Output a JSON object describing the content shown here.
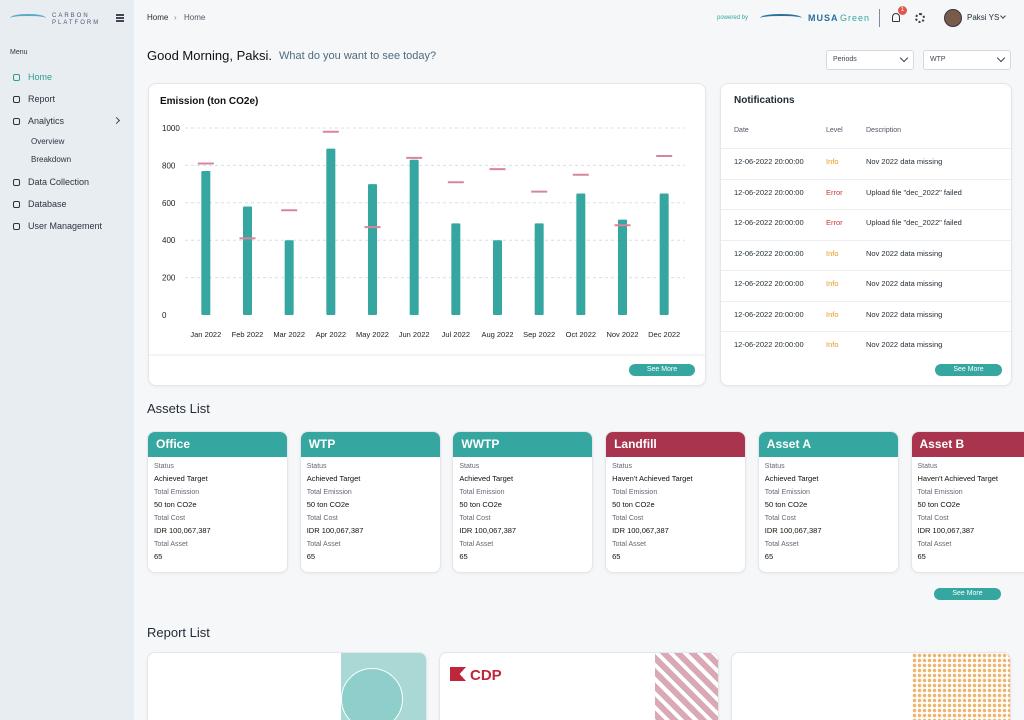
{
  "sidebar": {
    "logo": [
      "CARBON",
      "PLATFORM"
    ],
    "menu_label": "Menu",
    "nav": [
      {
        "label": "Home"
      },
      {
        "label": "Report"
      },
      {
        "label": "Analytics",
        "children": [
          "Overview",
          "Breakdown"
        ]
      },
      {
        "label": "Data Collection"
      },
      {
        "label": "Database"
      },
      {
        "label": "User Management"
      }
    ]
  },
  "topbar": {
    "breadcrumb": [
      "Home",
      "Home"
    ],
    "powered_by": "powered by",
    "brand": [
      "MUSA",
      "Green"
    ],
    "badge": "1",
    "user": "Paksi YS"
  },
  "greeting": "Good Morning, Paksi.",
  "prompt": "What do you want to see today?",
  "filters": [
    "Periods",
    "WTP"
  ],
  "chart_data": {
    "type": "bar",
    "title": "Emission (ton CO2e)",
    "categories": [
      "Jan 2022",
      "Feb 2022",
      "Mar 2022",
      "Apr 2022",
      "May 2022",
      "Jun 2022",
      "Jul 2022",
      "Aug 2022",
      "Sep 2022",
      "Oct 2022",
      "Nov 2022",
      "Dec 2022"
    ],
    "values": [
      770,
      580,
      400,
      890,
      700,
      830,
      490,
      400,
      490,
      650,
      510,
      650
    ],
    "color": "#35a7a0",
    "targets": [
      810,
      410,
      560,
      980,
      470,
      840,
      710,
      780,
      660,
      750,
      480,
      850
    ],
    "target_color": "#d98599",
    "ylim": [
      0,
      1000
    ],
    "yticks": [
      0,
      200,
      400,
      600,
      800,
      1000
    ],
    "grid": true,
    "button": "See More"
  },
  "notifications": {
    "title": "Notifications",
    "headers": [
      "Date",
      "Level",
      "Description"
    ],
    "rows": [
      {
        "date": "12-06-2022 20:00:00",
        "level": "Info",
        "color": "#e39b1f",
        "description": "Nov 2022 data missing"
      },
      {
        "date": "12-06-2022 20:00:00",
        "level": "Error",
        "color": "#c53a3a",
        "description": "Upload file \"dec_2022\" failed"
      },
      {
        "date": "12-06-2022 20:00:00",
        "level": "Error",
        "color": "#c53a3a",
        "description": "Upload file \"dec_2022\" failed"
      },
      {
        "date": "12-06-2022 20:00:00",
        "level": "Info",
        "color": "#e39b1f",
        "description": "Nov 2022 data missing"
      },
      {
        "date": "12-06-2022 20:00:00",
        "level": "Info",
        "color": "#e39b1f",
        "description": "Nov 2022 data missing"
      },
      {
        "date": "12-06-2022 20:00:00",
        "level": "Info",
        "color": "#e39b1f",
        "description": "Nov 2022 data missing"
      },
      {
        "date": "12-06-2022 20:00:00",
        "level": "Info",
        "color": "#e39b1f",
        "description": "Nov 2022 data missing"
      }
    ],
    "button": "See More"
  },
  "assets": {
    "title": "Assets List",
    "labels": [
      "Status",
      "Total Emission",
      "Total Cost",
      "Total Asset"
    ],
    "button": "See More",
    "cards": [
      {
        "name": "Office",
        "color": "#35a7a0",
        "status": "Achieved Target",
        "emission": "50 ton CO2e",
        "cost": "IDR 100,067,387",
        "total_asset": 65
      },
      {
        "name": "WTP",
        "color": "#35a7a0",
        "status": "Achieved Target",
        "emission": "50 ton CO2e",
        "cost": "IDR 100,067,387",
        "total_asset": 65
      },
      {
        "name": "WWTP",
        "color": "#35a7a0",
        "status": "Achieved Target",
        "emission": "50 ton CO2e",
        "cost": "IDR 100,067,387",
        "total_asset": 65
      },
      {
        "name": "Landfill",
        "color": "#a8344e",
        "status": "Haven't Achieved Target",
        "emission": "50 ton CO2e",
        "cost": "IDR 100,067,387",
        "total_asset": 65
      },
      {
        "name": "Asset A",
        "color": "#35a7a0",
        "status": "Achieved Target",
        "emission": "50 ton CO2e",
        "cost": "IDR 100,067,387",
        "total_asset": 65
      },
      {
        "name": "Asset B",
        "color": "#a8344e",
        "status": "Haven't Achieved Target",
        "emission": "50 ton CO2e",
        "cost": "IDR 100,067,387",
        "total_asset": 65
      }
    ]
  },
  "reports": {
    "title": "Report List",
    "cdp": "CDP"
  }
}
